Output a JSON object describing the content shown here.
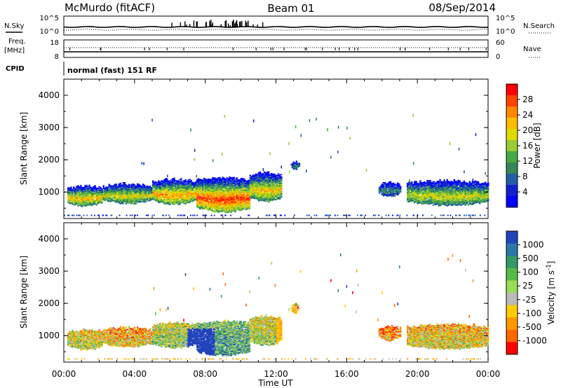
{
  "header": {
    "station": "McMurdo (fitACF)",
    "beam": "Beam 01",
    "date": "08/Sep/2014"
  },
  "housekeeping": {
    "nsky_label": "N.Sky",
    "nsearch_label": "N.Search",
    "freq_label_top": "Freq.",
    "freq_label_bottom": "[MHz]",
    "nave_label": "Nave",
    "cpid_label": "CPID",
    "mode_text": "normal (fast) 151 RF",
    "noise_ticks": [
      "10^5",
      "10^0"
    ],
    "freq_ticks": [
      "18",
      "8"
    ],
    "nave_ticks": [
      "60",
      "0"
    ]
  },
  "chart_data": [
    {
      "type": "heatmap",
      "name": "power",
      "xlabel": "Time UT",
      "ylabel": "Slant Range [km]",
      "x_ticks": [
        "00:00",
        "04:00",
        "08:00",
        "12:00",
        "16:00",
        "20:00",
        "00:00"
      ],
      "xlim_hours": [
        0,
        24
      ],
      "ylim": [
        180,
        4500
      ],
      "y_ticks": [
        "1000",
        "2000",
        "3000",
        "4000"
      ],
      "colorbar_label": "Power [dB]",
      "colorbar_ticks": [
        "28",
        "24",
        "20",
        "16",
        "12",
        "8",
        "4"
      ],
      "colorbar_colors": [
        "#ff0000",
        "#ff4400",
        "#ff8800",
        "#ffbb00",
        "#dddd00",
        "#99cc33",
        "#44aa44",
        "#338855",
        "#1f5fa8",
        "#1122cc",
        "#0000ff"
      ],
      "echo_regions": [
        {
          "t_start": 0.2,
          "t_end": 2.2,
          "r_low": 560,
          "r_high": 1180,
          "level": 0.72
        },
        {
          "t_start": 2.2,
          "t_end": 5.0,
          "r_low": 640,
          "r_high": 1250,
          "level": 0.62
        },
        {
          "t_start": 5.0,
          "t_end": 7.5,
          "r_low": 620,
          "r_high": 1400,
          "level": 0.78
        },
        {
          "t_start": 7.5,
          "t_end": 10.5,
          "r_low": 380,
          "r_high": 1450,
          "level": 0.95
        },
        {
          "t_start": 10.5,
          "t_end": 12.3,
          "r_low": 700,
          "r_high": 1600,
          "level": 0.7
        },
        {
          "t_start": 12.8,
          "t_end": 13.3,
          "r_low": 1700,
          "r_high": 1950,
          "level": 0.3
        },
        {
          "t_start": 17.8,
          "t_end": 19.0,
          "r_low": 850,
          "r_high": 1300,
          "level": 0.3
        },
        {
          "t_start": 19.4,
          "t_end": 24.0,
          "r_low": 580,
          "r_high": 1350,
          "level": 0.6
        }
      ]
    },
    {
      "type": "heatmap",
      "name": "velocity",
      "xlabel": "Time UT",
      "ylabel": "Slant Range [km]",
      "x_ticks": [
        "00:00",
        "04:00",
        "08:00",
        "12:00",
        "16:00",
        "20:00",
        "00:00"
      ],
      "xlim_hours": [
        0,
        24
      ],
      "ylim": [
        180,
        4500
      ],
      "y_ticks": [
        "1000",
        "2000",
        "3000",
        "4000"
      ],
      "colorbar_label": "Velocity [m s^-1]",
      "colorbar_ticks": [
        "1000",
        "500",
        "100",
        "25",
        "-25",
        "-100",
        "-500",
        "-1000"
      ],
      "colorbar_colors": [
        "#2244bb",
        "#2a77aa",
        "#339966",
        "#55bb44",
        "#99dd55",
        "#bbbbbb",
        "#ffcc00",
        "#ff9900",
        "#ff6600",
        "#ff0000"
      ],
      "echo_regions": [
        {
          "t_start": 0.2,
          "t_end": 2.2,
          "r_low": 560,
          "r_high": 1180,
          "level": 0.5
        },
        {
          "t_start": 2.2,
          "t_end": 5.0,
          "r_low": 640,
          "r_high": 1250,
          "level": 0.4
        },
        {
          "t_start": 5.0,
          "t_end": 7.5,
          "r_low": 620,
          "r_high": 1400,
          "level": 0.6
        },
        {
          "t_start": 7.5,
          "t_end": 10.5,
          "r_low": 380,
          "r_high": 1450,
          "level": 0.75
        },
        {
          "t_start": 10.5,
          "t_end": 12.3,
          "r_low": 700,
          "r_high": 1600,
          "level": 0.55
        },
        {
          "t_start": 12.8,
          "t_end": 13.3,
          "r_low": 1700,
          "r_high": 1950,
          "level": 0.4
        },
        {
          "t_start": 17.8,
          "t_end": 19.0,
          "r_low": 850,
          "r_high": 1300,
          "level": 0.3
        },
        {
          "t_start": 19.4,
          "t_end": 24.0,
          "r_low": 580,
          "r_high": 1350,
          "level": 0.45
        }
      ]
    }
  ]
}
